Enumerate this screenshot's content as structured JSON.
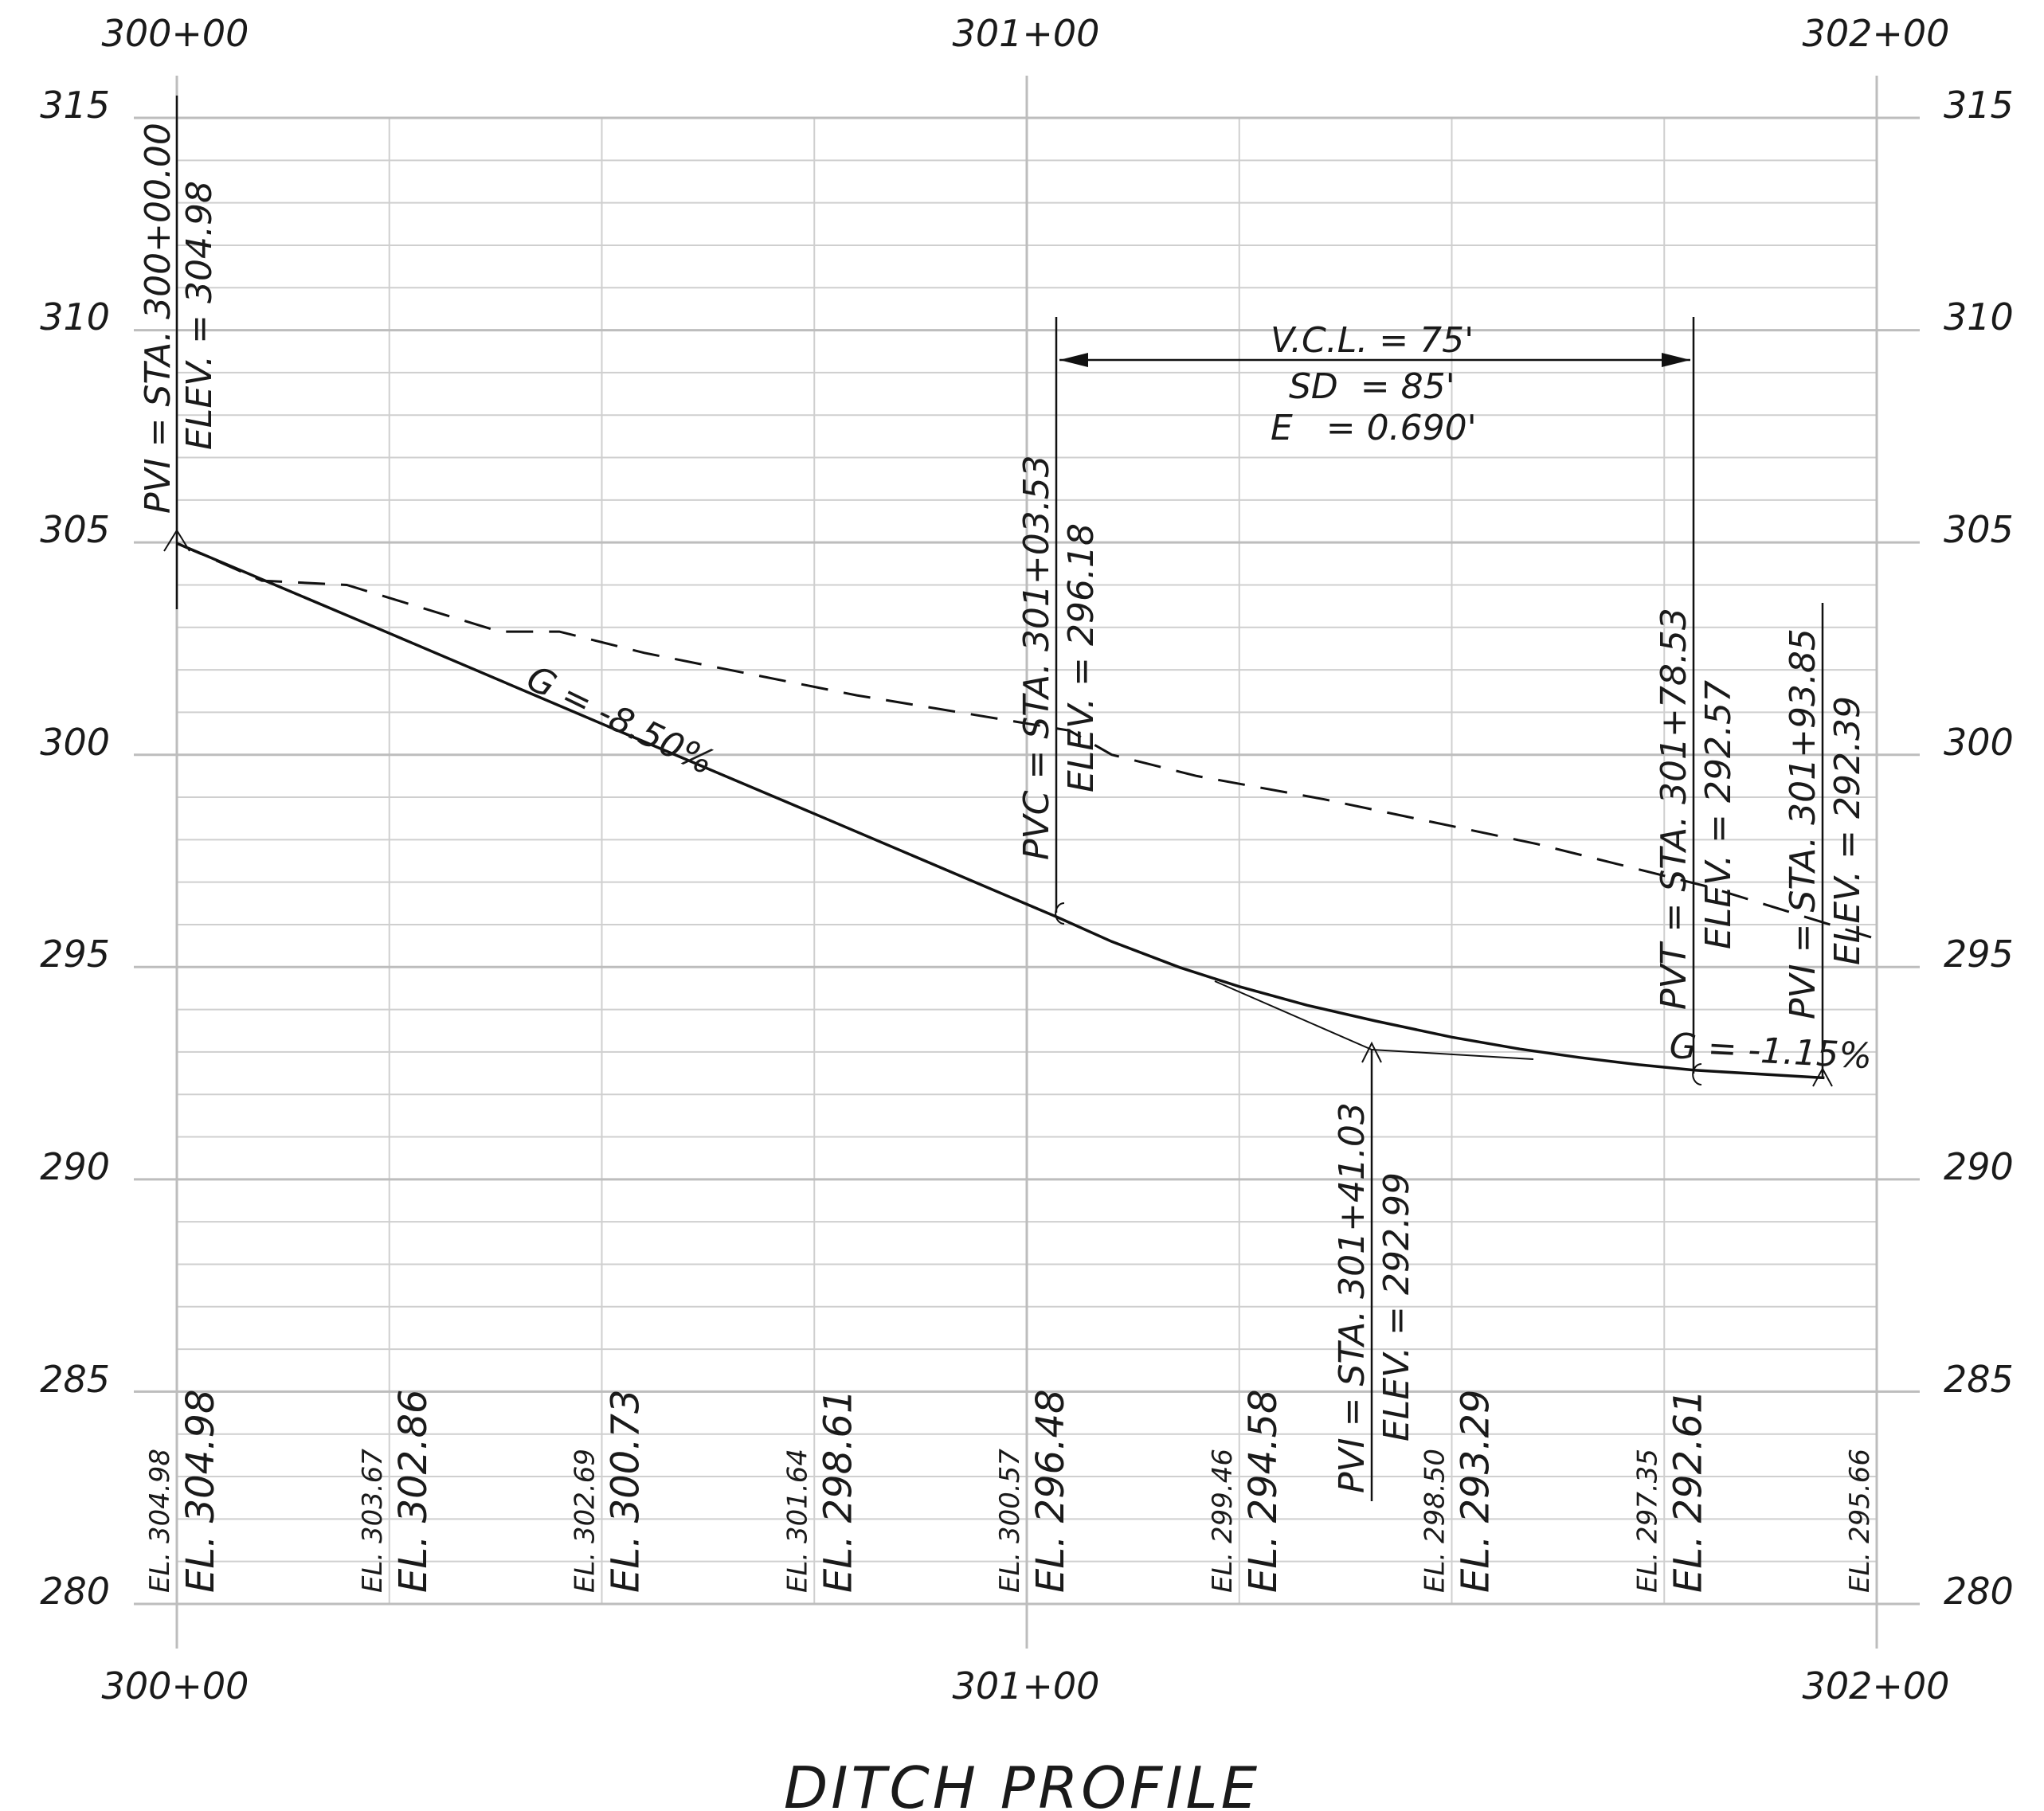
{
  "title": "DITCH PROFILE",
  "station_labels": [
    "300+00",
    "301+00",
    "302+00"
  ],
  "elevation_labels": [
    "315",
    "310",
    "305",
    "300",
    "295",
    "290",
    "285",
    "280"
  ],
  "pvi_start": {
    "station": "PVI = STA. 300+00.00",
    "elevation": "ELEV. = 304.98"
  },
  "pvc": {
    "station": "PVC = STA. 301+03.53",
    "elevation": "ELEV. = 296.18"
  },
  "pvi_mid": {
    "station": "PVI = STA. 301+41.03",
    "elevation": "ELEV. = 292.99"
  },
  "pvt": {
    "station": "PVT = STA. 301+78.53",
    "elevation": "ELEV. = 292.57"
  },
  "pvi_end": {
    "station": "PVI = STA. 301+93.85",
    "elevation": "ELEV. = 292.39"
  },
  "curve_data": {
    "vcl": "V.C.L. = 75'",
    "sd": "SD  = 85'",
    "e": "E   = 0.690'"
  },
  "grades": {
    "incoming": "G = -8.50%",
    "outgoing": "G = -1.15%"
  },
  "existing_elevations": [
    "EL. 304.98",
    "EL. 303.67",
    "EL. 302.69",
    "EL. 301.64",
    "EL. 300.57",
    "EL. 299.46",
    "EL. 298.50",
    "EL. 297.35",
    "EL. 295.66"
  ],
  "proposed_elevations": [
    "EL. 304.98",
    "EL. 302.86",
    "EL. 300.73",
    "EL. 298.61",
    "EL. 296.48",
    "EL. 294.58",
    "EL. 293.29",
    "EL. 292.61"
  ],
  "chart_data": {
    "type": "line",
    "title": "DITCH PROFILE",
    "xlabel": "",
    "ylabel": "",
    "x_tick_labels": [
      "300+00",
      "301+00",
      "302+00"
    ],
    "y_tick_labels": [
      "280",
      "285",
      "290",
      "295",
      "300",
      "305",
      "310",
      "315"
    ],
    "xlim": [
      0,
      200
    ],
    "ylim": [
      280,
      315
    ],
    "series": [
      {
        "name": "",
        "style": "dashed",
        "x": [
          0,
          10,
          20,
          38,
          45,
          55,
          80,
          105,
          110,
          120,
          135,
          160,
          180,
          200
        ],
        "y": [
          304.98,
          304.1,
          304.0,
          302.9,
          302.9,
          302.4,
          301.4,
          300.57,
          300.0,
          299.5,
          298.95,
          297.9,
          296.9,
          295.66
        ]
      },
      {
        "name": "",
        "style": "solid",
        "x": [
          0,
          25,
          50,
          75,
          100,
          103.53,
          110,
          118,
          125,
          133,
          141.03,
          150,
          158,
          165,
          172,
          178.53,
          193.85
        ],
        "y": [
          304.98,
          302.86,
          300.73,
          298.61,
          296.48,
          296.18,
          295.6,
          294.99,
          294.54,
          294.1,
          293.73,
          293.35,
          293.07,
          292.87,
          292.7,
          292.57,
          292.39
        ]
      }
    ],
    "annotations": [
      "PVI = STA. 300+00.00 ELEV. = 304.98",
      "PVC = STA. 301+03.53 ELEV. = 296.18",
      "PVI = STA. 301+41.03 ELEV. = 292.99",
      "PVT = STA. 301+78.53 ELEV. = 292.57",
      "PVI = STA. 301+93.85 ELEV. = 292.39",
      "V.C.L. = 75'",
      "SD = 85'",
      "E = 0.690'",
      "G = -8.50%",
      "G = -1.15%"
    ],
    "grid": true,
    "legend": "none"
  }
}
